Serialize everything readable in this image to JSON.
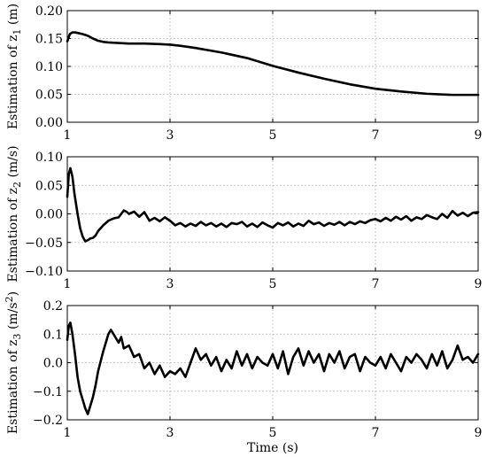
{
  "figure": {
    "xlabel": "Time (s)"
  },
  "chart_data": [
    {
      "type": "line",
      "ylabel_parts": [
        "Estimation of z",
        "1",
        " (m)",
        ""
      ],
      "xlim": [
        1,
        9
      ],
      "ylim": [
        0,
        0.2
      ],
      "xticks": [
        1,
        3,
        5,
        7,
        9
      ],
      "yticks": [
        0.0,
        0.05,
        0.1,
        0.15,
        0.2
      ],
      "ytick_labels": [
        "0.00",
        "0.05",
        "0.10",
        "0.15",
        "0.20"
      ],
      "grid": true,
      "x": [
        1.0,
        1.05,
        1.1,
        1.15,
        1.2,
        1.3,
        1.4,
        1.5,
        1.6,
        1.7,
        1.8,
        2.0,
        2.2,
        2.5,
        2.8,
        3.0,
        3.2,
        3.5,
        4.0,
        4.5,
        5.0,
        5.5,
        6.0,
        6.5,
        7.0,
        7.5,
        8.0,
        8.5,
        9.0
      ],
      "series": [
        {
          "values": [
            0.145,
            0.158,
            0.161,
            0.161,
            0.16,
            0.158,
            0.155,
            0.15,
            0.146,
            0.144,
            0.143,
            0.142,
            0.141,
            0.141,
            0.14,
            0.139,
            0.137,
            0.133,
            0.125,
            0.115,
            0.101,
            0.089,
            0.078,
            0.068,
            0.06,
            0.055,
            0.051,
            0.049,
            0.049
          ]
        }
      ]
    },
    {
      "type": "line",
      "ylabel_parts": [
        "Estimation of z",
        "2",
        " (m/s)",
        ""
      ],
      "xlim": [
        1,
        9
      ],
      "ylim": [
        -0.1,
        0.1
      ],
      "xticks": [
        1,
        3,
        5,
        7,
        9
      ],
      "yticks": [
        -0.1,
        -0.05,
        0.0,
        0.05,
        0.1
      ],
      "ytick_labels": [
        "−0.10",
        "−0.05",
        "0.00",
        "0.05",
        "0.10"
      ],
      "grid": true,
      "x": [
        1.0,
        1.03,
        1.06,
        1.1,
        1.14,
        1.2,
        1.25,
        1.3,
        1.35,
        1.4,
        1.45,
        1.5,
        1.55,
        1.6,
        1.7,
        1.8,
        1.9,
        2.0,
        2.1,
        2.15,
        2.2,
        2.3,
        2.4,
        2.5,
        2.6,
        2.7,
        2.8,
        2.9,
        3.0,
        3.1,
        3.2,
        3.3,
        3.4,
        3.5,
        3.6,
        3.7,
        3.8,
        3.9,
        4.0,
        4.1,
        4.2,
        4.3,
        4.4,
        4.5,
        4.6,
        4.7,
        4.8,
        4.9,
        5.0,
        5.1,
        5.2,
        5.3,
        5.4,
        5.5,
        5.6,
        5.7,
        5.8,
        5.9,
        6.0,
        6.1,
        6.2,
        6.3,
        6.4,
        6.5,
        6.6,
        6.7,
        6.8,
        6.9,
        7.0,
        7.1,
        7.2,
        7.3,
        7.4,
        7.5,
        7.6,
        7.7,
        7.8,
        7.9,
        8.0,
        8.1,
        8.2,
        8.3,
        8.4,
        8.5,
        8.6,
        8.7,
        8.8,
        8.9,
        9.0
      ],
      "series": [
        {
          "values": [
            0.03,
            0.07,
            0.08,
            0.065,
            0.035,
            0.0,
            -0.025,
            -0.04,
            -0.048,
            -0.046,
            -0.043,
            -0.042,
            -0.038,
            -0.03,
            -0.02,
            -0.012,
            -0.008,
            -0.006,
            0.006,
            0.004,
            0.0,
            0.004,
            -0.005,
            0.003,
            -0.012,
            -0.007,
            -0.013,
            -0.006,
            -0.012,
            -0.02,
            -0.016,
            -0.022,
            -0.017,
            -0.021,
            -0.014,
            -0.02,
            -0.016,
            -0.022,
            -0.017,
            -0.023,
            -0.016,
            -0.018,
            -0.014,
            -0.022,
            -0.017,
            -0.023,
            -0.015,
            -0.02,
            -0.024,
            -0.016,
            -0.02,
            -0.015,
            -0.022,
            -0.017,
            -0.021,
            -0.012,
            -0.018,
            -0.015,
            -0.021,
            -0.016,
            -0.019,
            -0.014,
            -0.02,
            -0.014,
            -0.018,
            -0.013,
            -0.016,
            -0.011,
            -0.009,
            -0.013,
            -0.007,
            -0.012,
            -0.005,
            -0.01,
            -0.004,
            -0.012,
            -0.006,
            -0.009,
            -0.002,
            -0.006,
            -0.009,
            0.0,
            -0.007,
            0.005,
            -0.003,
            0.002,
            -0.004,
            0.002,
            0.003
          ]
        }
      ]
    },
    {
      "type": "line",
      "ylabel_parts": [
        "Estimation of z",
        "3",
        " (m/s",
        "2"
      ],
      "ylabel_tail": ")",
      "xlim": [
        1,
        9
      ],
      "ylim": [
        -0.2,
        0.2
      ],
      "xticks": [
        1,
        3,
        5,
        7,
        9
      ],
      "yticks": [
        -0.2,
        -0.1,
        0.0,
        0.1,
        0.2
      ],
      "ytick_labels": [
        "−0.2",
        "−0.1",
        "0.0",
        "0.1",
        "0.2"
      ],
      "grid": true,
      "x": [
        1.0,
        1.03,
        1.06,
        1.1,
        1.15,
        1.2,
        1.25,
        1.3,
        1.35,
        1.4,
        1.45,
        1.5,
        1.55,
        1.6,
        1.7,
        1.8,
        1.85,
        1.9,
        2.0,
        2.05,
        2.1,
        2.2,
        2.3,
        2.4,
        2.5,
        2.6,
        2.7,
        2.8,
        2.9,
        3.0,
        3.1,
        3.2,
        3.3,
        3.4,
        3.5,
        3.6,
        3.7,
        3.8,
        3.9,
        4.0,
        4.1,
        4.2,
        4.3,
        4.4,
        4.5,
        4.6,
        4.7,
        4.8,
        4.9,
        5.0,
        5.1,
        5.2,
        5.3,
        5.4,
        5.5,
        5.6,
        5.7,
        5.8,
        5.9,
        6.0,
        6.1,
        6.2,
        6.3,
        6.4,
        6.5,
        6.6,
        6.7,
        6.8,
        6.9,
        7.0,
        7.1,
        7.2,
        7.3,
        7.4,
        7.5,
        7.6,
        7.7,
        7.8,
        7.9,
        8.0,
        8.1,
        8.2,
        8.3,
        8.4,
        8.5,
        8.6,
        8.7,
        8.8,
        8.9,
        9.0
      ],
      "series": [
        {
          "values": [
            0.08,
            0.13,
            0.14,
            0.1,
            0.03,
            -0.05,
            -0.1,
            -0.13,
            -0.16,
            -0.18,
            -0.15,
            -0.12,
            -0.08,
            -0.03,
            0.04,
            0.1,
            0.115,
            0.1,
            0.07,
            0.09,
            0.05,
            0.06,
            0.02,
            0.03,
            -0.02,
            0.0,
            -0.04,
            -0.01,
            -0.05,
            -0.03,
            -0.04,
            -0.02,
            -0.05,
            0.0,
            0.05,
            0.01,
            0.03,
            -0.01,
            0.02,
            -0.03,
            0.01,
            -0.02,
            0.04,
            -0.01,
            0.03,
            -0.02,
            0.02,
            0.0,
            -0.01,
            0.03,
            -0.02,
            0.04,
            -0.04,
            0.02,
            0.05,
            -0.01,
            0.04,
            0.0,
            0.03,
            -0.03,
            0.03,
            0.0,
            0.04,
            -0.02,
            0.02,
            0.03,
            -0.03,
            0.02,
            0.0,
            -0.01,
            0.02,
            -0.02,
            0.03,
            0.0,
            -0.03,
            0.02,
            0.0,
            0.03,
            0.01,
            -0.02,
            0.03,
            -0.01,
            0.04,
            -0.02,
            0.01,
            0.06,
            0.01,
            0.02,
            0.0,
            0.03
          ]
        }
      ]
    }
  ]
}
